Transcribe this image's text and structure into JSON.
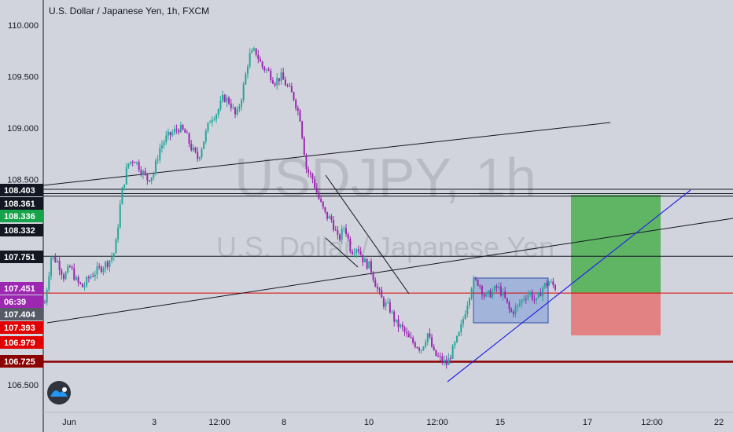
{
  "header": {
    "title": "U.S. Dollar / Japanese Yen, 1h, FXCM"
  },
  "watermark": {
    "symbol": "USDJPY, 1h",
    "name": "U.S. Dollar / Japanese Yen"
  },
  "logo": {
    "name": "tradingview-logo-icon"
  },
  "colors": {
    "background": "#d1d4dc",
    "bull": "#26a69a",
    "bear": "#9c27b0",
    "target_zone": "#4caf50",
    "stop_zone": "#e57373",
    "trendline_blue": "#2424e6",
    "rect_zone": "#6b8ed6"
  },
  "chart_data": {
    "type": "candlestick",
    "title": "U.S. Dollar / Japanese Yen, 1h, FXCM",
    "ylim": [
      106.3,
      110.17
    ],
    "y_ticks": [
      "110.000",
      "109.500",
      "109.000",
      "108.500",
      "106.500"
    ],
    "x_ticks": [
      "Jun",
      "3",
      "12:00",
      "8",
      "10",
      "12:00",
      "15",
      "17",
      "12:00",
      "22"
    ],
    "price_labels": [
      {
        "text": "108.403",
        "value": 108.403,
        "color": "#131722"
      },
      {
        "text": "108.361",
        "value": 108.361,
        "color": "#131722"
      },
      {
        "text": "108.336",
        "value": 108.336,
        "color": "#16a34a"
      },
      {
        "text": "108.332",
        "value": 108.332,
        "color": "#131722"
      },
      {
        "text": "107.751",
        "value": 107.751,
        "color": "#131722"
      },
      {
        "text": "107.451",
        "value": 107.451,
        "color": "#9c27b0"
      },
      {
        "text": "06:39",
        "value": 107.36,
        "color": "#9c27b0"
      },
      {
        "text": "107.404",
        "value": 107.404,
        "color": "#555a66"
      },
      {
        "text": "107.393",
        "value": 107.393,
        "color": "#e00000"
      },
      {
        "text": "106.979",
        "value": 106.979,
        "color": "#e00000"
      },
      {
        "text": "106.725",
        "value": 106.725,
        "color": "#8b0000"
      }
    ],
    "horizontal_levels": [
      {
        "value": 108.403,
        "color": "#131722"
      },
      {
        "value": 108.361,
        "color": "#131722"
      },
      {
        "value": 108.336,
        "color": "#131722"
      },
      {
        "value": 107.751,
        "color": "#131722"
      },
      {
        "value": 107.393,
        "color": "#e00000"
      },
      {
        "value": 106.725,
        "color": "#8b0000"
      }
    ],
    "trade_zone": {
      "entry": 107.393,
      "target": 108.336,
      "stop": 106.979
    },
    "price_path": [
      107.3,
      107.75,
      107.7,
      107.55,
      107.65,
      107.5,
      107.45,
      107.55,
      107.6,
      107.65,
      107.7,
      107.8,
      108.35,
      108.65,
      108.7,
      108.6,
      108.5,
      108.55,
      108.8,
      108.9,
      108.95,
      109.0,
      108.95,
      108.8,
      108.7,
      108.9,
      109.1,
      109.15,
      109.3,
      109.25,
      109.1,
      109.35,
      109.7,
      109.75,
      109.6,
      109.55,
      109.45,
      109.5,
      109.4,
      109.3,
      109.1,
      108.6,
      108.5,
      108.3,
      108.15,
      108.1,
      107.9,
      108.05,
      107.8,
      107.85,
      107.7,
      107.65,
      107.45,
      107.3,
      107.25,
      107.1,
      107.05,
      106.95,
      106.9,
      106.85,
      107.0,
      106.8,
      106.75,
      106.7,
      106.85,
      107.0,
      107.25,
      107.5,
      107.5,
      107.35,
      107.4,
      107.45,
      107.35,
      107.2,
      107.25,
      107.35,
      107.4,
      107.3,
      107.45,
      107.5,
      107.45
    ]
  }
}
